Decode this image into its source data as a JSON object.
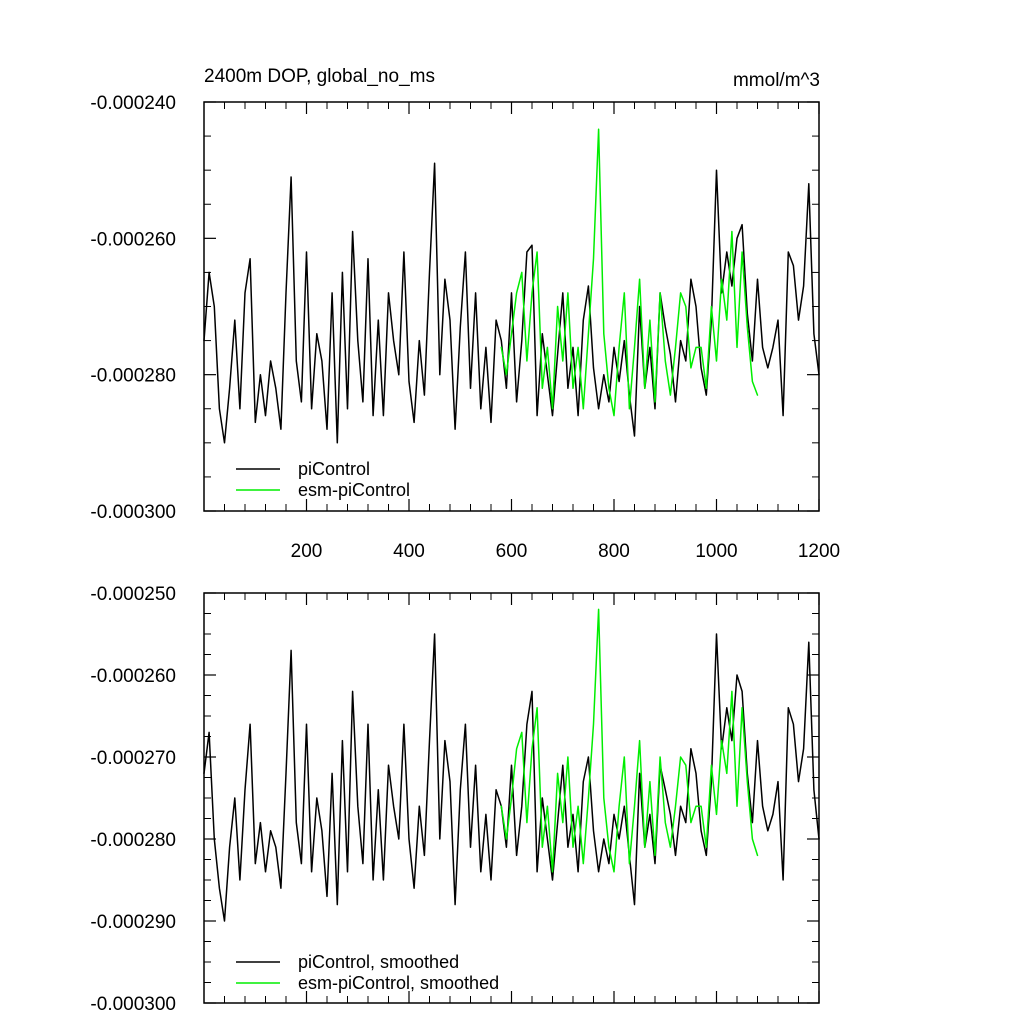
{
  "chart_data": [
    {
      "type": "line",
      "title": "2400m DOP, global_no_ms",
      "units": "mmol/m^3",
      "xlim": [
        0,
        1200
      ],
      "ylim": [
        -0.0003,
        -0.00024
      ],
      "xticks": [
        200,
        400,
        600,
        800,
        1000,
        1200
      ],
      "xtick_labels": [
        "200",
        "400",
        "600",
        "800",
        "1000",
        "1200"
      ],
      "yticks": [
        -0.00024,
        -0.00026,
        -0.00028,
        -0.0003
      ],
      "ytick_labels": [
        "-0.000240",
        "-0.000260",
        "-0.000280",
        "-0.000300"
      ],
      "legend_position": "bottom-left",
      "series": [
        {
          "name": "piControl",
          "color": "#000000",
          "x": [
            0,
            10,
            20,
            30,
            40,
            50,
            60,
            70,
            80,
            90,
            100,
            110,
            120,
            130,
            140,
            150,
            160,
            170,
            180,
            190,
            200,
            210,
            220,
            230,
            240,
            250,
            260,
            270,
            280,
            290,
            300,
            310,
            320,
            330,
            340,
            350,
            360,
            370,
            380,
            390,
            400,
            410,
            420,
            430,
            440,
            450,
            460,
            470,
            480,
            490,
            500,
            510,
            520,
            530,
            540,
            550,
            560,
            570,
            580,
            590,
            600,
            610,
            620,
            630,
            640,
            650,
            660,
            670,
            680,
            690,
            700,
            710,
            720,
            730,
            740,
            750,
            760,
            770,
            780,
            790,
            800,
            810,
            820,
            830,
            840,
            850,
            860,
            870,
            880,
            890,
            900,
            910,
            920,
            930,
            940,
            950,
            960,
            970,
            980,
            990,
            1000,
            1010,
            1020,
            1030,
            1040,
            1050,
            1060,
            1070,
            1080,
            1090,
            1100,
            1110,
            1120,
            1130,
            1140,
            1150,
            1160,
            1170,
            1180,
            1190,
            1200
          ],
          "values": [
            -0.000275,
            -0.000265,
            -0.00027,
            -0.000285,
            -0.00029,
            -0.000282,
            -0.000272,
            -0.000285,
            -0.000268,
            -0.000263,
            -0.000287,
            -0.00028,
            -0.000286,
            -0.000278,
            -0.000282,
            -0.000288,
            -0.000268,
            -0.000251,
            -0.000278,
            -0.000284,
            -0.000262,
            -0.000285,
            -0.000274,
            -0.000278,
            -0.000288,
            -0.000268,
            -0.00029,
            -0.000265,
            -0.000285,
            -0.000259,
            -0.000275,
            -0.000284,
            -0.000263,
            -0.000286,
            -0.000272,
            -0.000286,
            -0.000268,
            -0.000275,
            -0.00028,
            -0.000262,
            -0.000281,
            -0.000287,
            -0.000275,
            -0.000283,
            -0.000265,
            -0.000249,
            -0.00028,
            -0.000266,
            -0.000272,
            -0.000288,
            -0.000273,
            -0.000262,
            -0.000282,
            -0.000268,
            -0.000285,
            -0.000276,
            -0.000287,
            -0.000272,
            -0.000275,
            -0.000282,
            -0.000268,
            -0.000284,
            -0.000275,
            -0.000262,
            -0.000261,
            -0.000286,
            -0.000274,
            -0.00028,
            -0.000286,
            -0.000277,
            -0.000268,
            -0.000282,
            -0.000276,
            -0.000286,
            -0.000272,
            -0.000267,
            -0.000279,
            -0.000285,
            -0.00028,
            -0.000284,
            -0.000276,
            -0.000281,
            -0.000275,
            -0.000283,
            -0.000289,
            -0.00027,
            -0.000282,
            -0.000276,
            -0.000285,
            -0.000268,
            -0.000273,
            -0.000277,
            -0.000284,
            -0.000275,
            -0.000278,
            -0.000266,
            -0.00027,
            -0.000279,
            -0.000283,
            -0.000272,
            -0.00025,
            -0.000268,
            -0.000262,
            -0.000267,
            -0.00026,
            -0.000258,
            -0.000271,
            -0.000278,
            -0.000266,
            -0.000276,
            -0.000279,
            -0.000276,
            -0.000272,
            -0.000286,
            -0.000262,
            -0.000264,
            -0.000272,
            -0.000267,
            -0.000252,
            -0.000274,
            -0.00028
          ]
        },
        {
          "name": "esm-piControl",
          "color": "#00ee00",
          "x": [
            580,
            590,
            600,
            610,
            620,
            630,
            640,
            650,
            660,
            670,
            680,
            690,
            700,
            710,
            720,
            730,
            740,
            750,
            760,
            770,
            780,
            790,
            800,
            810,
            820,
            830,
            840,
            850,
            860,
            870,
            880,
            890,
            900,
            910,
            920,
            930,
            940,
            950,
            960,
            970,
            980,
            990,
            1000,
            1010,
            1020,
            1030,
            1040,
            1050,
            1060,
            1070,
            1080
          ],
          "values": [
            -0.000276,
            -0.00028,
            -0.000274,
            -0.000268,
            -0.000265,
            -0.000278,
            -0.000268,
            -0.000262,
            -0.000282,
            -0.000276,
            -0.000285,
            -0.00027,
            -0.000278,
            -0.000268,
            -0.000282,
            -0.000276,
            -0.000285,
            -0.000274,
            -0.000263,
            -0.000244,
            -0.000274,
            -0.000282,
            -0.000286,
            -0.000276,
            -0.000268,
            -0.000285,
            -0.000276,
            -0.000266,
            -0.000282,
            -0.000272,
            -0.000284,
            -0.000268,
            -0.000278,
            -0.000283,
            -0.000276,
            -0.000268,
            -0.00027,
            -0.000279,
            -0.000276,
            -0.000276,
            -0.000282,
            -0.00027,
            -0.000278,
            -0.000266,
            -0.000272,
            -0.000259,
            -0.000276,
            -0.000262,
            -0.000273,
            -0.000281,
            -0.000283
          ]
        }
      ]
    },
    {
      "type": "line",
      "title": "",
      "xlim": [
        0,
        1200
      ],
      "ylim": [
        -0.0003,
        -0.00025
      ],
      "xticks": [
        200,
        400,
        600,
        800,
        1000,
        1200
      ],
      "yticks": [
        -0.00025,
        -0.00026,
        -0.00027,
        -0.00028,
        -0.00029,
        -0.0003
      ],
      "ytick_labels": [
        "-0.000250",
        "-0.000260",
        "-0.000270",
        "-0.000280",
        "-0.000290",
        "-0.000300"
      ],
      "legend_position": "bottom-left",
      "series": [
        {
          "name": "piControl, smoothed",
          "color": "#000000",
          "x": [
            0,
            10,
            20,
            30,
            40,
            50,
            60,
            70,
            80,
            90,
            100,
            110,
            120,
            130,
            140,
            150,
            160,
            170,
            180,
            190,
            200,
            210,
            220,
            230,
            240,
            250,
            260,
            270,
            280,
            290,
            300,
            310,
            320,
            330,
            340,
            350,
            360,
            370,
            380,
            390,
            400,
            410,
            420,
            430,
            440,
            450,
            460,
            470,
            480,
            490,
            500,
            510,
            520,
            530,
            540,
            550,
            560,
            570,
            580,
            590,
            600,
            610,
            620,
            630,
            640,
            650,
            660,
            670,
            680,
            690,
            700,
            710,
            720,
            730,
            740,
            750,
            760,
            770,
            780,
            790,
            800,
            810,
            820,
            830,
            840,
            850,
            860,
            870,
            880,
            890,
            900,
            910,
            920,
            930,
            940,
            950,
            960,
            970,
            980,
            990,
            1000,
            1010,
            1020,
            1030,
            1040,
            1050,
            1060,
            1070,
            1080,
            1090,
            1100,
            1110,
            1120,
            1130,
            1140,
            1150,
            1160,
            1170,
            1180,
            1190,
            1200
          ],
          "values": [
            -0.000272,
            -0.000267,
            -0.00028,
            -0.000286,
            -0.00029,
            -0.000281,
            -0.000275,
            -0.000285,
            -0.000274,
            -0.000266,
            -0.000283,
            -0.000278,
            -0.000284,
            -0.000279,
            -0.000281,
            -0.000286,
            -0.000272,
            -0.000257,
            -0.000278,
            -0.000283,
            -0.000266,
            -0.000284,
            -0.000275,
            -0.000279,
            -0.000287,
            -0.000272,
            -0.000288,
            -0.000268,
            -0.000284,
            -0.000262,
            -0.000276,
            -0.000283,
            -0.000266,
            -0.000285,
            -0.000274,
            -0.000285,
            -0.000271,
            -0.000276,
            -0.00028,
            -0.000266,
            -0.00028,
            -0.000286,
            -0.000276,
            -0.000282,
            -0.000268,
            -0.000255,
            -0.00028,
            -0.000268,
            -0.000273,
            -0.000288,
            -0.000274,
            -0.000266,
            -0.000281,
            -0.000271,
            -0.000284,
            -0.000277,
            -0.000285,
            -0.000274,
            -0.000276,
            -0.000281,
            -0.000271,
            -0.000282,
            -0.000276,
            -0.000266,
            -0.000262,
            -0.000284,
            -0.000275,
            -0.00028,
            -0.000285,
            -0.000278,
            -0.000271,
            -0.000281,
            -0.000277,
            -0.000284,
            -0.000273,
            -0.00027,
            -0.000279,
            -0.000284,
            -0.00028,
            -0.000283,
            -0.000277,
            -0.00028,
            -0.000276,
            -0.000282,
            -0.000288,
            -0.000272,
            -0.000281,
            -0.000277,
            -0.000283,
            -0.000271,
            -0.000274,
            -0.000277,
            -0.000282,
            -0.000276,
            -0.000278,
            -0.000269,
            -0.000272,
            -0.000279,
            -0.000282,
            -0.000273,
            -0.000255,
            -0.000269,
            -0.000264,
            -0.000268,
            -0.00026,
            -0.000262,
            -0.000272,
            -0.000278,
            -0.000268,
            -0.000276,
            -0.000279,
            -0.000277,
            -0.000273,
            -0.000285,
            -0.000264,
            -0.000266,
            -0.000273,
            -0.000269,
            -0.000256,
            -0.000274,
            -0.00028
          ]
        },
        {
          "name": "esm-piControl, smoothed",
          "color": "#00ee00",
          "x": [
            580,
            590,
            600,
            610,
            620,
            630,
            640,
            650,
            660,
            670,
            680,
            690,
            700,
            710,
            720,
            730,
            740,
            750,
            760,
            770,
            780,
            790,
            800,
            810,
            820,
            830,
            840,
            850,
            860,
            870,
            880,
            890,
            900,
            910,
            920,
            930,
            940,
            950,
            960,
            970,
            980,
            990,
            1000,
            1010,
            1020,
            1030,
            1040,
            1050,
            1060,
            1070,
            1080
          ],
          "values": [
            -0.000276,
            -0.00028,
            -0.000275,
            -0.000269,
            -0.000267,
            -0.000278,
            -0.000269,
            -0.000264,
            -0.000281,
            -0.000276,
            -0.000284,
            -0.000272,
            -0.000278,
            -0.00027,
            -0.000281,
            -0.000276,
            -0.000283,
            -0.000275,
            -0.000266,
            -0.000252,
            -0.000275,
            -0.000281,
            -0.000284,
            -0.000276,
            -0.00027,
            -0.000283,
            -0.000276,
            -0.000268,
            -0.000281,
            -0.000273,
            -0.000282,
            -0.00027,
            -0.000278,
            -0.000281,
            -0.000276,
            -0.00027,
            -0.000271,
            -0.000278,
            -0.000276,
            -0.000276,
            -0.000281,
            -0.000271,
            -0.000277,
            -0.000268,
            -0.000272,
            -0.000262,
            -0.000276,
            -0.000264,
            -0.000273,
            -0.00028,
            -0.000282
          ]
        }
      ]
    }
  ]
}
